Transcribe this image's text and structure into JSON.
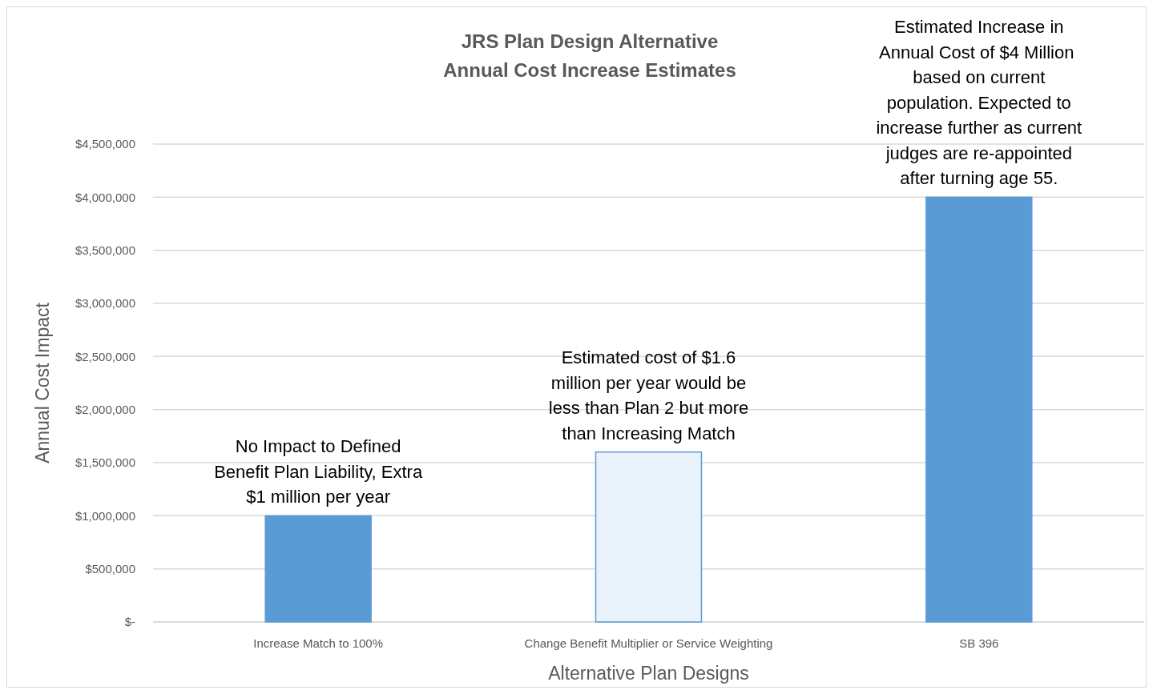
{
  "chart_data": {
    "type": "bar",
    "title": "JRS Plan Design Alternative Annual Cost Increase Estimates",
    "xlabel": "Alternative Plan Designs",
    "ylabel": "Annual Cost Impact",
    "categories": [
      "Increase Match to 100%",
      "Change Benefit Multiplier or Service Weighting",
      "SB 396"
    ],
    "values": [
      1000000,
      1600000,
      4000000
    ],
    "colors": [
      "#5b9bd5",
      "#eaf2fb",
      "#5b9bd5"
    ],
    "ylim": [
      0,
      4500000
    ],
    "yticks": [
      {
        "value": 0,
        "label": "$-"
      },
      {
        "value": 500000,
        "label": "$500,000"
      },
      {
        "value": 1000000,
        "label": "$1,000,000"
      },
      {
        "value": 1500000,
        "label": "$1,500,000"
      },
      {
        "value": 2000000,
        "label": "$2,000,000"
      },
      {
        "value": 2500000,
        "label": "$2,500,000"
      },
      {
        "value": 3000000,
        "label": "$3,000,000"
      },
      {
        "value": 3500000,
        "label": "$3,500,000"
      },
      {
        "value": 4000000,
        "label": "$4,000,000"
      },
      {
        "value": 4500000,
        "label": "$4,500,000"
      }
    ],
    "grid": "y",
    "annotations": [
      {
        "text": "No Impact to Defined Benefit Plan Liability, Extra $1 million per year",
        "x": "Increase Match to 100%",
        "y": 1000000
      },
      {
        "text": "Estimated cost of $1.6 million per year would be less than Plan 2 but more than  Increasing Match",
        "x": "Change Benefit Multiplier or Service Weighting",
        "y": 1600000
      },
      {
        "text": "Estimated Increase in Annual Cost of $4 Million  based on current population. Expected to increase further as current judges are re-appointed after turning age 55.",
        "x": "SB 396",
        "y": 4000000
      }
    ]
  }
}
